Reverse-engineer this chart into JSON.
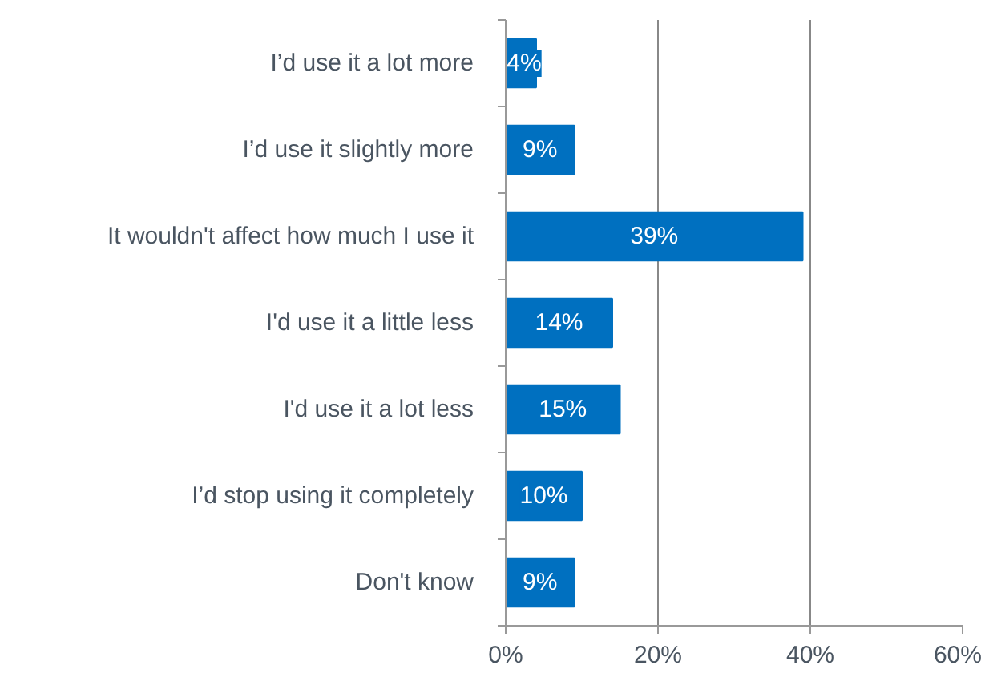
{
  "chart_data": {
    "type": "bar",
    "orientation": "horizontal",
    "categories": [
      "I’d use it a lot more",
      "I’d use it slightly more",
      "It wouldn't affect how much I use it",
      "I'd use it a little less",
      "I'd use it a lot less",
      "I’d stop using it completely",
      "Don't know"
    ],
    "values": [
      4,
      9,
      39,
      14,
      15,
      10,
      9
    ],
    "color": "#0070c0",
    "value_labels": [
      "4%",
      "9%",
      "39%",
      "14%",
      "15%",
      "10%",
      "9%"
    ],
    "xlim": [
      0,
      60
    ],
    "xticks": [
      {
        "value": 0,
        "label": "0%"
      },
      {
        "value": 20,
        "label": "20%"
      },
      {
        "value": 40,
        "label": "40%"
      },
      {
        "value": 60,
        "label": "60%"
      }
    ],
    "grid": "x"
  }
}
